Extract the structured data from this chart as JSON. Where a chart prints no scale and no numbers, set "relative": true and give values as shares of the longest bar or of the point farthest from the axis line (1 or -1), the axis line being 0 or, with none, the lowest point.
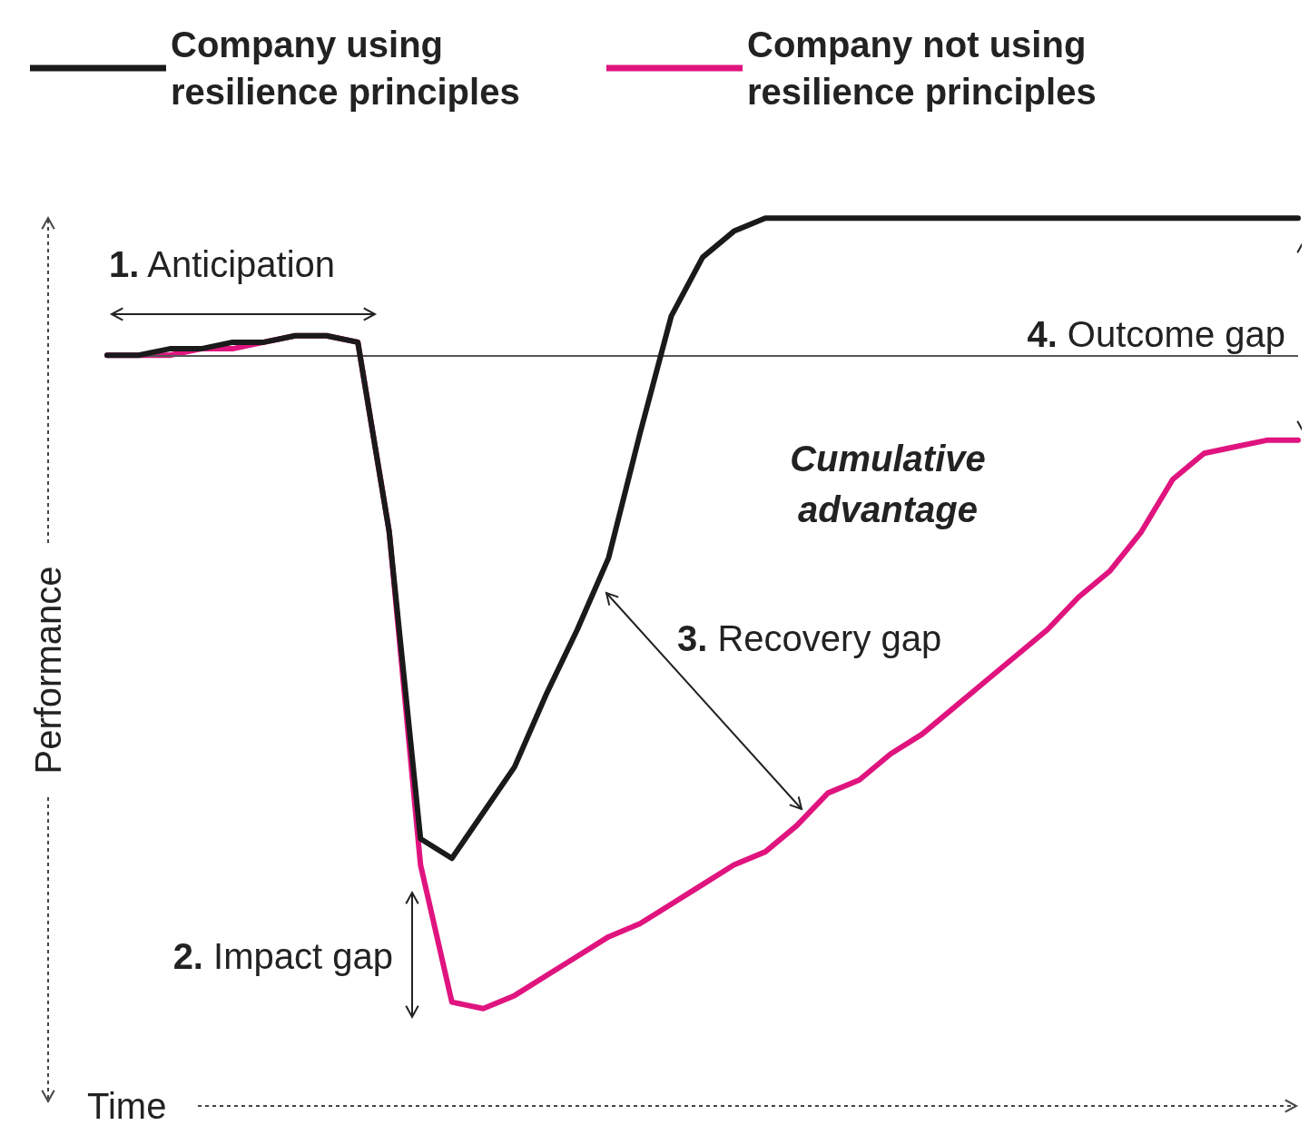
{
  "chart_data": {
    "type": "line",
    "xlabel": "Time",
    "ylabel": "Performance",
    "relative": true,
    "marker": "none",
    "legend": "top left",
    "categories": [
      null,
      null,
      null,
      null,
      null,
      null,
      null,
      null,
      null,
      null,
      null,
      null,
      null,
      null,
      null,
      null,
      null,
      null,
      null,
      null,
      null,
      null,
      null,
      null,
      null,
      null,
      null,
      null,
      null,
      null,
      null,
      null,
      null,
      null,
      null,
      null,
      null,
      null,
      null
    ],
    "series": [
      {
        "name": "Company using resilience principles",
        "color": "#1a1a1a",
        "values": [
          0.0,
          0.0,
          0.01,
          0.01,
          0.02,
          0.02,
          0.03,
          0.03,
          0.02,
          -0.27,
          -0.74,
          -0.77,
          -0.7,
          -0.63,
          -0.52,
          -0.42,
          -0.31,
          -0.12,
          0.06,
          0.15,
          0.19,
          0.21,
          0.21,
          0.21,
          0.21,
          0.21,
          0.21,
          0.21,
          0.21,
          0.21,
          0.21,
          0.21,
          0.21,
          0.21,
          0.21,
          0.21,
          0.21,
          0.21,
          0.21
        ]
      },
      {
        "name": "Company not using resilience principles",
        "color": "#e0147f",
        "values": [
          0.0,
          0.0,
          0.0,
          0.01,
          0.01,
          0.02,
          0.03,
          0.03,
          0.02,
          -0.27,
          -0.78,
          -0.99,
          -1,
          -0.98,
          -0.95,
          -0.92,
          -0.89,
          -0.87,
          -0.84,
          -0.81,
          -0.78,
          -0.76,
          -0.72,
          -0.67,
          -0.65,
          -0.61,
          -0.58,
          -0.54,
          -0.5,
          -0.46,
          -0.42,
          -0.37,
          -0.33,
          -0.27,
          -0.19,
          -0.15,
          -0.14,
          -0.13,
          -0.13
        ]
      }
    ],
    "ref_lines": [
      {
        "axis": "y",
        "value": 0,
        "color": "#555555"
      }
    ],
    "annotations": [
      "1. Anticipation",
      "2. Impact gap",
      "3. Recovery gap",
      "4. Outcome gap",
      "Cumulative advantage"
    ]
  }
}
